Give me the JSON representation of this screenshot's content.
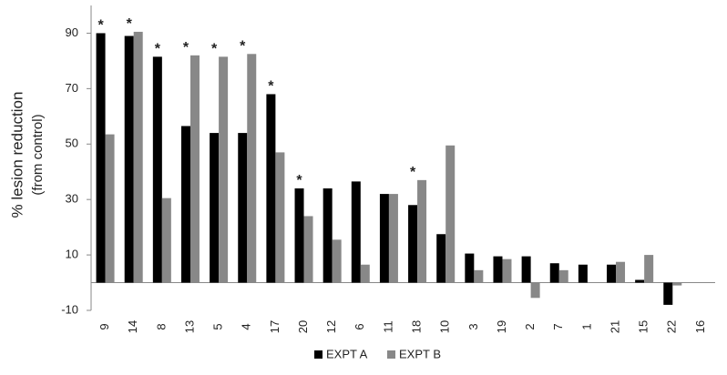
{
  "chart_data": {
    "type": "bar",
    "y_label": [
      "% lesion reduction",
      "(from control)"
    ],
    "categories": [
      "9",
      "14",
      "8",
      "13",
      "5",
      "4",
      "17",
      "20",
      "12",
      "6",
      "11",
      "18",
      "10",
      "3",
      "19",
      "2",
      "7",
      "1",
      "21",
      "15",
      "22",
      "16"
    ],
    "series": [
      {
        "name": "EXPT A",
        "color": "#000000",
        "values": [
          90,
          89,
          81.5,
          56.5,
          54,
          54,
          68,
          34,
          34,
          36.5,
          32,
          28,
          17.5,
          10.5,
          9.5,
          9.5,
          7,
          6.5,
          6.5,
          1,
          -8,
          null
        ]
      },
      {
        "name": "EXPT B",
        "color": "#888888",
        "values": [
          53.5,
          90.5,
          30.5,
          82,
          81.5,
          82.5,
          47,
          24,
          15.5,
          6.5,
          32,
          37,
          49.5,
          4.5,
          8.5,
          -5.5,
          4.5,
          null,
          7.5,
          10,
          -1,
          null
        ]
      }
    ],
    "annotations": [
      "*",
      "*",
      "*",
      "*",
      "*",
      "*",
      "*",
      "*",
      null,
      null,
      null,
      "*",
      null,
      null,
      null,
      null,
      null,
      null,
      null,
      null,
      null,
      null
    ],
    "ylim": [
      -10,
      100
    ],
    "yticks": [
      -10,
      10,
      30,
      50,
      70,
      90
    ],
    "grid": false,
    "legend": "bottom"
  }
}
